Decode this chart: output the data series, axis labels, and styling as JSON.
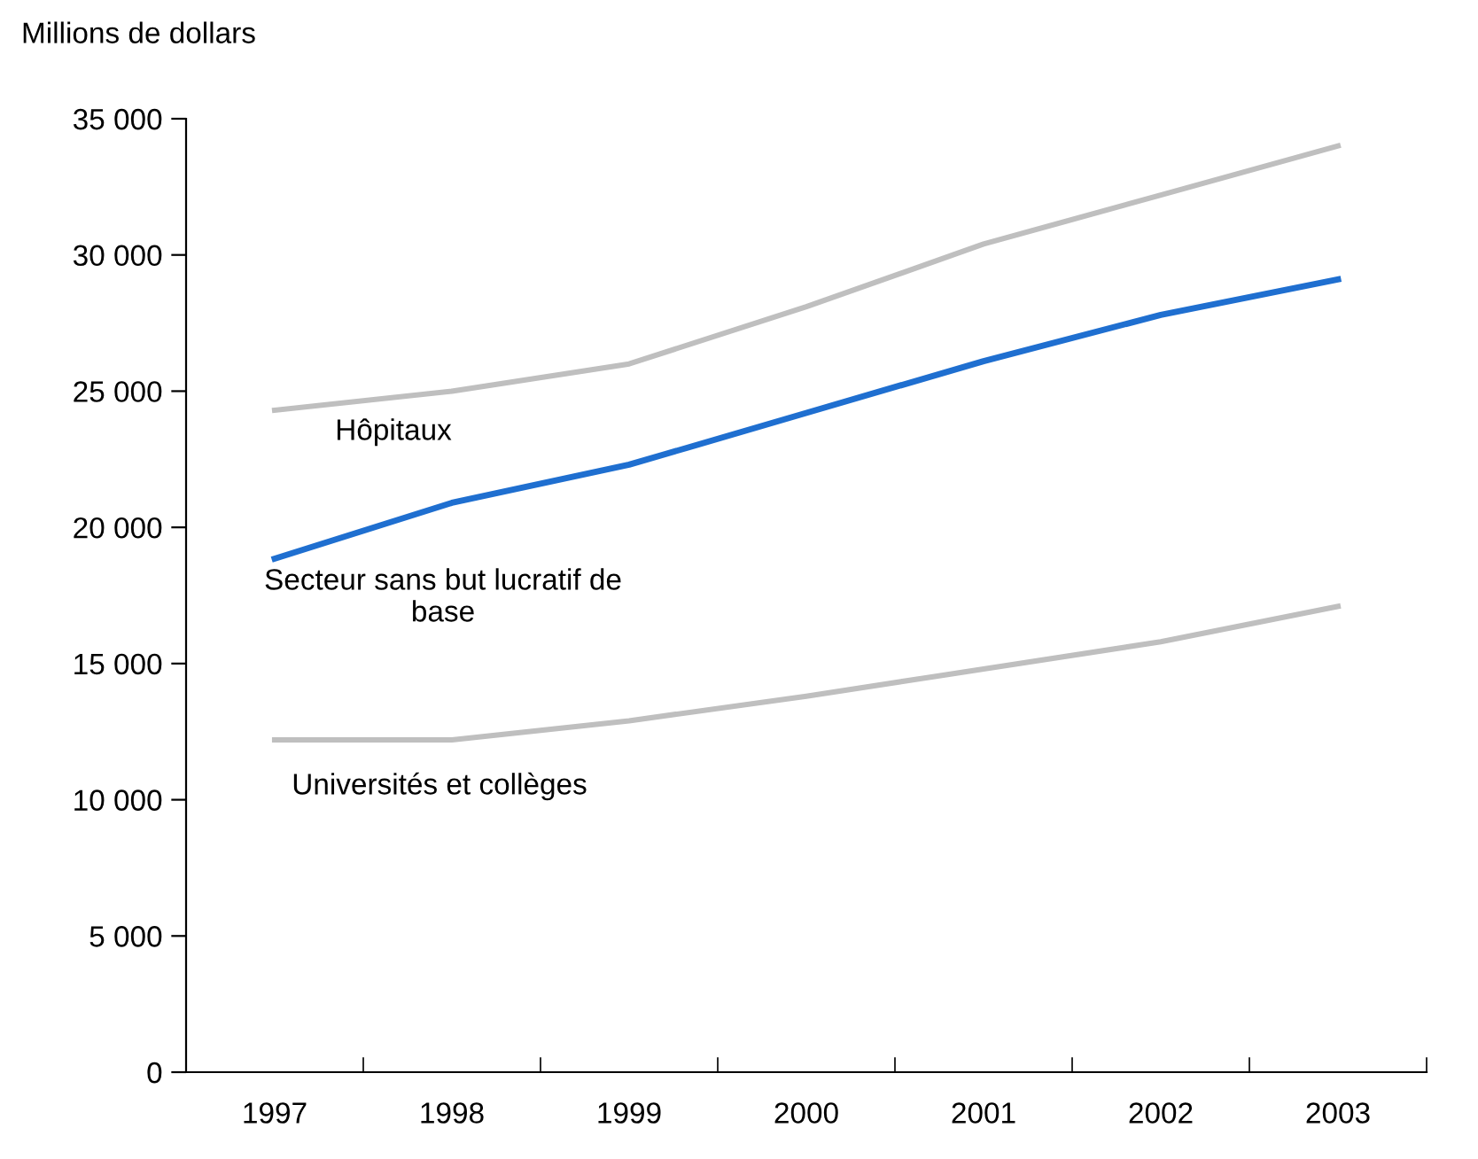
{
  "chart_data": {
    "type": "line",
    "ylabel": "Millions de dollars",
    "categories": [
      "1997",
      "1998",
      "1999",
      "2000",
      "2001",
      "2002",
      "2003"
    ],
    "series": [
      {
        "name": "Hôpitaux",
        "color": "#bfbfbf",
        "values": [
          24300,
          25000,
          26000,
          28100,
          30400,
          32200,
          34000
        ]
      },
      {
        "name": "Secteur sans but lucratif de base",
        "color": "#1f6fd0",
        "values": [
          18850,
          20900,
          22300,
          24200,
          26100,
          27800,
          29100
        ]
      },
      {
        "name": "Universités et collèges",
        "color": "#bfbfbf",
        "values": [
          12200,
          12200,
          12900,
          13800,
          14800,
          15800,
          17100
        ]
      }
    ],
    "ylim": [
      0,
      35000
    ],
    "yticks": [
      {
        "value": 0,
        "label": "0"
      },
      {
        "value": 5000,
        "label": "5 000"
      },
      {
        "value": 10000,
        "label": "10 000"
      },
      {
        "value": 15000,
        "label": "15 000"
      },
      {
        "value": 20000,
        "label": "20 000"
      },
      {
        "value": 25000,
        "label": "25 000"
      },
      {
        "value": 30000,
        "label": "30 000"
      },
      {
        "value": 35000,
        "label": "35 000"
      }
    ],
    "grid": false,
    "legend": false,
    "marker": "none",
    "line_style": "solid"
  }
}
